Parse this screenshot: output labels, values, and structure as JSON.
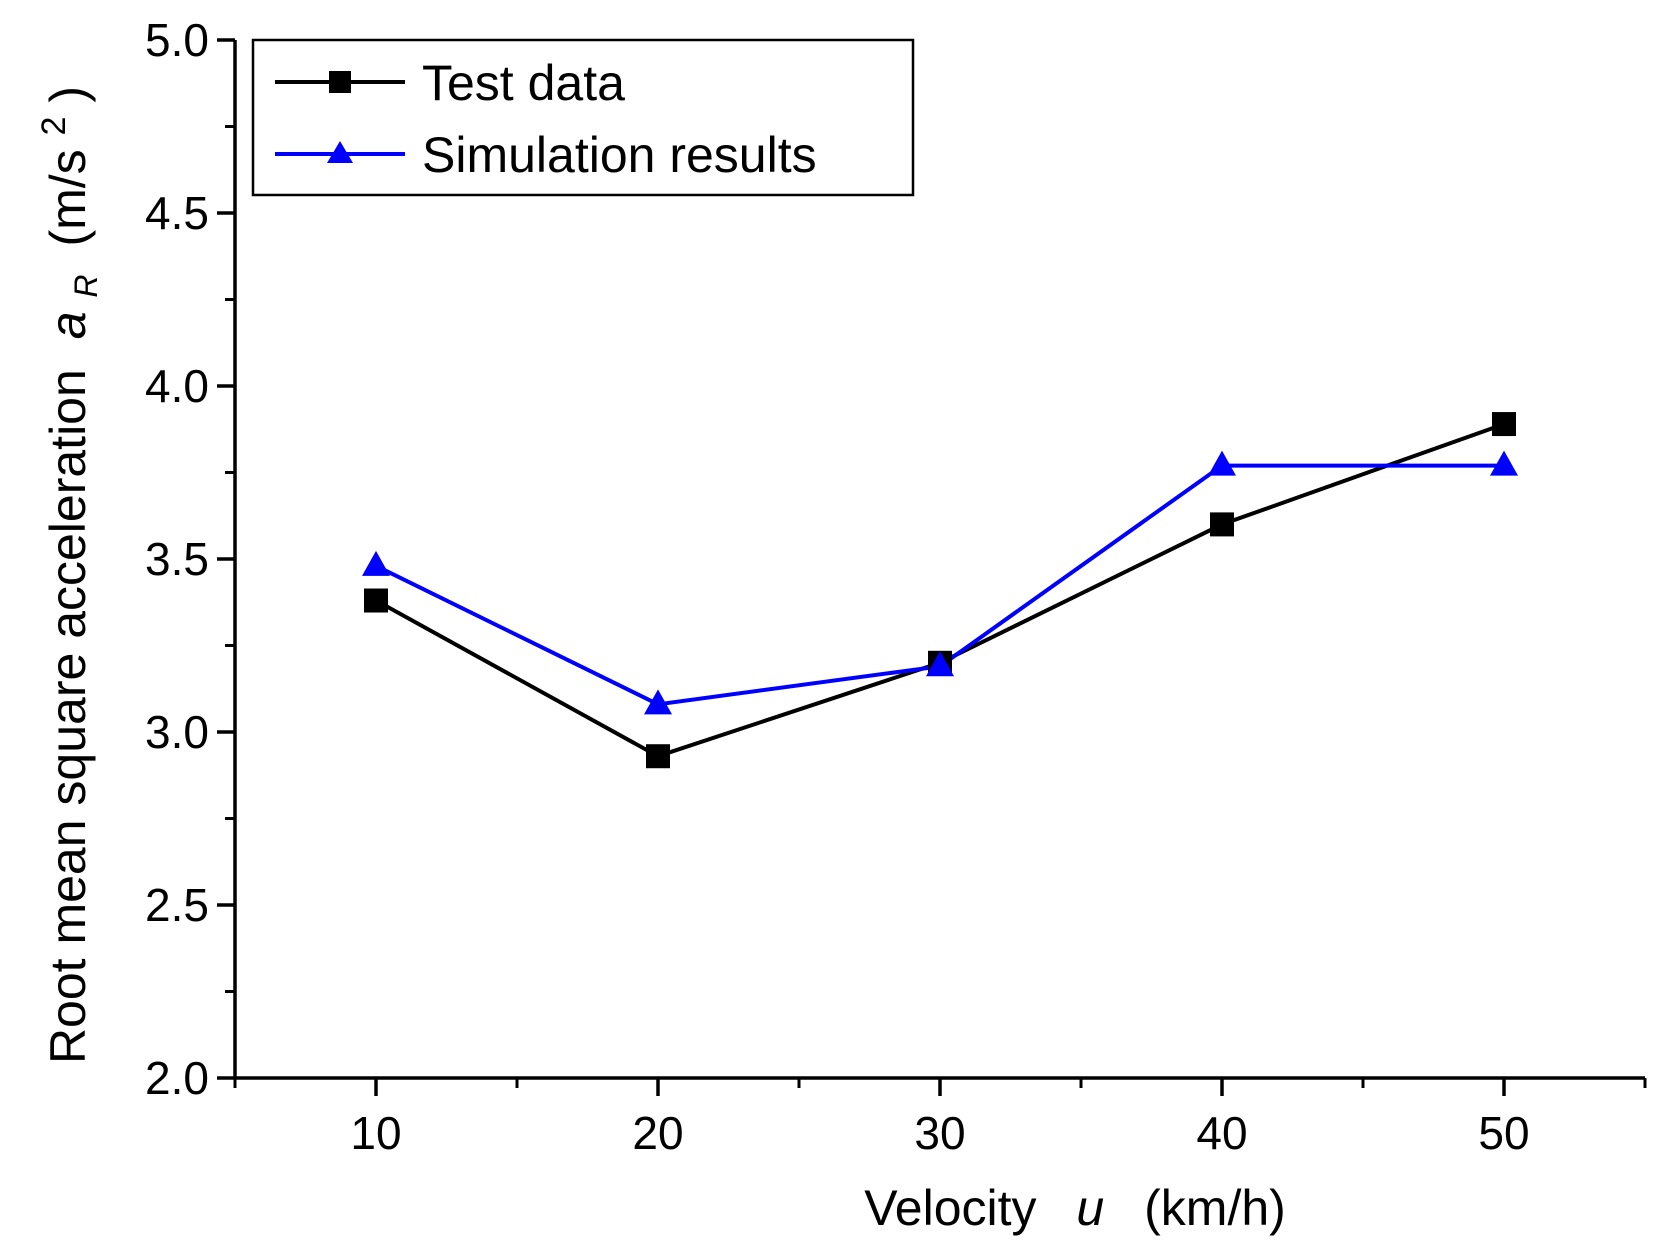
{
  "chart_data": {
    "type": "line",
    "title": "",
    "xlabel": {
      "prefix": "Velocity",
      "symbol": "u",
      "unit": "(km/h)"
    },
    "ylabel": {
      "prefix": "Root mean square acceleration",
      "symbol": "a",
      "subscript": "R",
      "unit_open": "(m/s",
      "unit_sup": "2",
      "unit_close": ")"
    },
    "x": [
      10,
      20,
      30,
      40,
      50
    ],
    "xlim": [
      5,
      55
    ],
    "xticks": [
      10,
      20,
      30,
      40,
      50
    ],
    "xtick_labels": [
      "10",
      "20",
      "30",
      "40",
      "50"
    ],
    "ylim": [
      2.0,
      5.0
    ],
    "yticks": [
      2.0,
      2.5,
      3.0,
      3.5,
      4.0,
      4.5,
      5.0
    ],
    "ytick_labels": [
      "2.0",
      "2.5",
      "3.0",
      "3.5",
      "4.0",
      "4.5",
      "5.0"
    ],
    "grid": false,
    "legend_position": "top-left",
    "series": [
      {
        "name": "Test data",
        "values": [
          3.38,
          2.93,
          3.2,
          3.6,
          3.89
        ],
        "color": "#000000",
        "marker": "square"
      },
      {
        "name": "Simulation results",
        "values": [
          3.48,
          3.08,
          3.19,
          3.77,
          3.77
        ],
        "color": "#0000ff",
        "marker": "triangle"
      }
    ]
  }
}
